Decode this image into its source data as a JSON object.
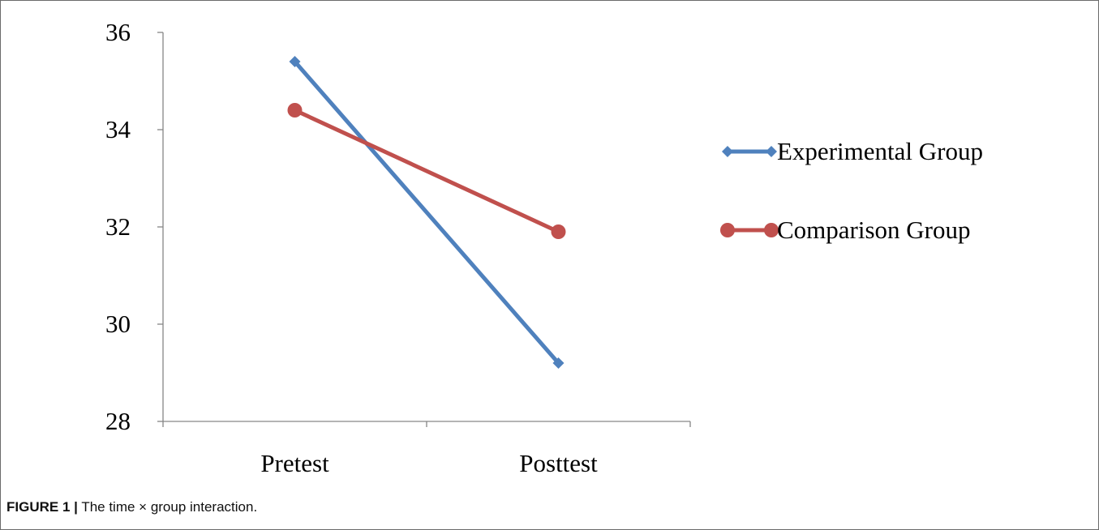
{
  "chart_data": {
    "type": "line",
    "categories": [
      "Pretest",
      "Posttest"
    ],
    "series": [
      {
        "name": "Experimental Group",
        "values": [
          35.4,
          29.2
        ],
        "color": "#4f81bd",
        "marker": "diamond"
      },
      {
        "name": "Comparison Group",
        "values": [
          34.4,
          31.9
        ],
        "color": "#c0504d",
        "marker": "circle"
      }
    ],
    "ylim": [
      28,
      36
    ],
    "yticks": [
      28,
      30,
      32,
      34,
      36
    ],
    "title": "",
    "xlabel": "",
    "ylabel": "",
    "legend_position": "right",
    "grid": false
  },
  "caption": {
    "label": "FIGURE 1 |",
    "text": "The time × group interaction."
  }
}
